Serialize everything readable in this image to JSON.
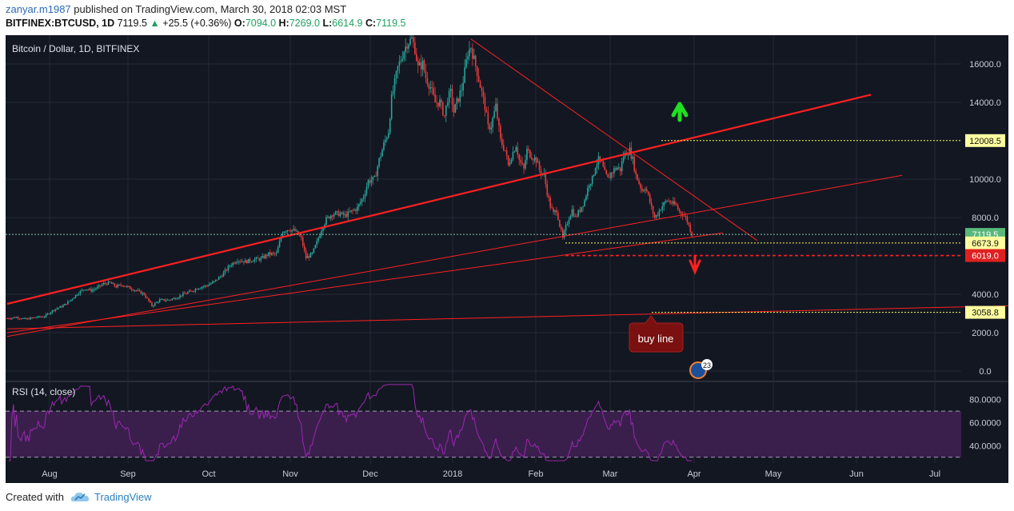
{
  "header": {
    "author": "zanyar.m1987",
    "published_text": " published on TradingView.com, March 30, 2018 02:03 MST",
    "symbol": "BITFINEX:BTCUSD, 1D",
    "last": "7119.5",
    "change_arrow": "▲",
    "change": "+25.5 (+0.36%)",
    "o_label": "O:",
    "o": "7094.0",
    "h_label": "H:",
    "h": "7269.0",
    "l_label": "L:",
    "l": "6614.9",
    "c_label": "C:",
    "c": "7119.5"
  },
  "footer": {
    "created_with": "Created with",
    "brand": "TradingView"
  },
  "chart_data": {
    "type": "candlestick",
    "title": "Bitcoin / Dollar, 1D, BITFINEX",
    "price_ticks": [
      0,
      2000,
      4000,
      8000,
      10000,
      14000,
      16000
    ],
    "price_tick_labels": [
      "0.0",
      "2000.0",
      "4000.0",
      "8000.0",
      "10000.0",
      "14000.0",
      "16000.0"
    ],
    "ylim": [
      -500,
      17500
    ],
    "x_tick_labels": [
      "Aug",
      "Sep",
      "Oct",
      "Nov",
      "Dec",
      "2018",
      "Feb",
      "Mar",
      "Apr",
      "May",
      "Jun",
      "Jul"
    ],
    "price_path": [
      [
        0,
        2750
      ],
      [
        6,
        2800
      ],
      [
        12,
        2700
      ],
      [
        18,
        2800
      ],
      [
        24,
        2850
      ],
      [
        30,
        3200
      ],
      [
        36,
        3400
      ],
      [
        40,
        3650
      ],
      [
        46,
        4100
      ],
      [
        50,
        4300
      ],
      [
        54,
        4200
      ],
      [
        58,
        4350
      ],
      [
        62,
        4550
      ],
      [
        66,
        4600
      ],
      [
        70,
        4400
      ],
      [
        74,
        4500
      ],
      [
        78,
        4350
      ],
      [
        83,
        4200
      ],
      [
        88,
        4000
      ],
      [
        93,
        3400
      ],
      [
        98,
        3700
      ],
      [
        103,
        3700
      ],
      [
        108,
        3800
      ],
      [
        113,
        4000
      ],
      [
        118,
        4150
      ],
      [
        123,
        4350
      ],
      [
        128,
        4450
      ],
      [
        133,
        4650
      ],
      [
        138,
        5000
      ],
      [
        143,
        5500
      ],
      [
        148,
        5800
      ],
      [
        153,
        5700
      ],
      [
        158,
        5800
      ],
      [
        163,
        5850
      ],
      [
        168,
        6100
      ],
      [
        173,
        6100
      ],
      [
        177,
        7300
      ],
      [
        181,
        7400
      ],
      [
        185,
        7300
      ],
      [
        189,
        6900
      ],
      [
        192,
        5900
      ],
      [
        196,
        6100
      ],
      [
        199,
        6700
      ],
      [
        202,
        7400
      ],
      [
        205,
        7900
      ],
      [
        209,
        8200
      ],
      [
        213,
        8200
      ],
      [
        217,
        8100
      ],
      [
        221,
        8300
      ],
      [
        225,
        8500
      ],
      [
        229,
        9100
      ],
      [
        232,
        9900
      ],
      [
        236,
        10000
      ],
      [
        239,
        11000
      ],
      [
        242,
        11800
      ],
      [
        245,
        12500
      ],
      [
        247,
        14200
      ],
      [
        249,
        15000
      ],
      [
        251,
        15800
      ],
      [
        254,
        16500
      ],
      [
        257,
        17100
      ],
      [
        260,
        17300
      ],
      [
        262,
        16800
      ],
      [
        264,
        15800
      ],
      [
        267,
        16000
      ],
      [
        269,
        15300
      ],
      [
        272,
        14800
      ],
      [
        275,
        14000
      ],
      [
        278,
        14000
      ],
      [
        281,
        13300
      ],
      [
        283,
        14200
      ],
      [
        285,
        14500
      ],
      [
        287,
        13500
      ],
      [
        289,
        14000
      ],
      [
        292,
        14700
      ],
      [
        294,
        15600
      ],
      [
        296,
        16600
      ],
      [
        298,
        16900
      ],
      [
        300,
        16200
      ],
      [
        302,
        15600
      ],
      [
        305,
        14500
      ],
      [
        307,
        13800
      ],
      [
        309,
        12700
      ],
      [
        311,
        12800
      ],
      [
        314,
        13800
      ],
      [
        317,
        12000
      ],
      [
        320,
        11500
      ],
      [
        322,
        10700
      ],
      [
        324,
        11200
      ],
      [
        327,
        11800
      ],
      [
        329,
        11000
      ],
      [
        332,
        10500
      ],
      [
        334,
        11500
      ],
      [
        337,
        11200
      ],
      [
        340,
        11000
      ],
      [
        342,
        10500
      ],
      [
        345,
        10200
      ],
      [
        347,
        9300
      ],
      [
        349,
        8600
      ],
      [
        351,
        8200
      ],
      [
        353,
        8400
      ],
      [
        355,
        7600
      ],
      [
        357,
        6900
      ],
      [
        359,
        7500
      ],
      [
        361,
        8000
      ],
      [
        363,
        8400
      ],
      [
        365,
        8000
      ],
      [
        368,
        8400
      ],
      [
        371,
        8900
      ],
      [
        374,
        9800
      ],
      [
        376,
        10000
      ],
      [
        378,
        10700
      ],
      [
        380,
        11000
      ],
      [
        382,
        10800
      ],
      [
        384,
        10300
      ],
      [
        386,
        10000
      ],
      [
        388,
        10300
      ],
      [
        390,
        10500
      ],
      [
        392,
        10600
      ],
      [
        394,
        10500
      ],
      [
        396,
        11200
      ],
      [
        398,
        11400
      ],
      [
        400,
        11500
      ],
      [
        402,
        11000
      ],
      [
        404,
        10200
      ],
      [
        406,
        9800
      ],
      [
        408,
        9400
      ],
      [
        410,
        9600
      ],
      [
        412,
        9100
      ],
      [
        414,
        8500
      ],
      [
        416,
        8000
      ],
      [
        418,
        8200
      ],
      [
        420,
        8500
      ],
      [
        422,
        8700
      ],
      [
        424,
        8900
      ],
      [
        426,
        8800
      ],
      [
        428,
        8700
      ],
      [
        430,
        8600
      ],
      [
        432,
        8300
      ],
      [
        434,
        8200
      ],
      [
        436,
        8000
      ],
      [
        438,
        7600
      ],
      [
        440,
        7119.5
      ]
    ],
    "horizontal_levels": [
      {
        "price": 12008.5,
        "label": "12008.5",
        "bg": "#ffffa0",
        "line": "#ffff50"
      },
      {
        "price": 7119.5,
        "label": "7119.5",
        "bg": "#5ab87a",
        "line": "#7fbf9f"
      },
      {
        "price": 6673.9,
        "label": "6673.9",
        "bg": "#ffffa0",
        "line": "#ffff50"
      },
      {
        "price": 6019.0,
        "label": "6019.0",
        "bg": "#e02020",
        "line": "#ff2020"
      },
      {
        "price": 3058.8,
        "label": "3058.8",
        "bg": "#ffffa0",
        "line": "#ffff50"
      }
    ],
    "annotation": "buy line",
    "event_badge": "23",
    "rsi": {
      "label": "RSI (14, close)",
      "ticks": [
        40,
        60,
        80
      ],
      "tick_labels": [
        "40.0000",
        "60.0000",
        "80.0000"
      ],
      "bands": [
        30,
        70
      ],
      "ylim": [
        25,
        95
      ]
    },
    "colors": {
      "background": "#131722",
      "up": "#26a69a",
      "down": "#e83b3b",
      "trendline": "#ff2020",
      "rsi_line": "#9c27b0",
      "rsi_band": "#3a1f4d",
      "arrow_up": "#20e020",
      "arrow_down": "#ff2020"
    }
  }
}
